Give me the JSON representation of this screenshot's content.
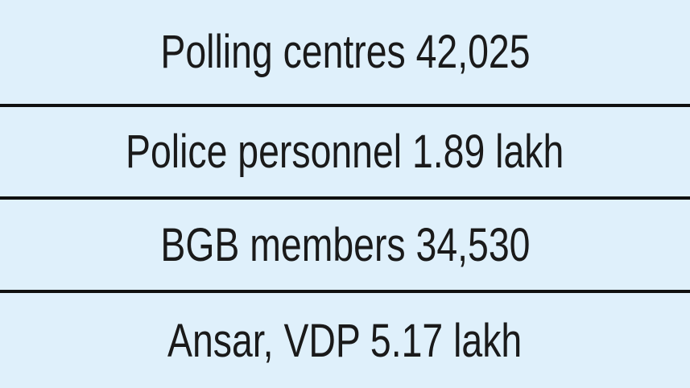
{
  "colors": {
    "background": "#DFF0FB",
    "divider": "#101010",
    "text": "#1A1A1A"
  },
  "rows": [
    {
      "label": "Polling centres",
      "value": "42,025",
      "text": "Polling centres 42,025"
    },
    {
      "label": "Police personnel",
      "value": "1.89 lakh",
      "text": "Police personnel 1.89 lakh"
    },
    {
      "label": "BGB members",
      "value": "34,530",
      "text": "BGB members 34,530"
    },
    {
      "label": "Ansar, VDP",
      "value": "5.17 lakh",
      "text": "Ansar, VDP 5.17 lakh"
    }
  ],
  "chart_data": {
    "type": "table",
    "columns": [
      "category",
      "count"
    ],
    "rows": [
      [
        "Polling centres",
        "42,025"
      ],
      [
        "Police personnel",
        "1.89 lakh"
      ],
      [
        "BGB members",
        "34,530"
      ],
      [
        "Ansar, VDP",
        "5.17 lakh"
      ]
    ]
  }
}
